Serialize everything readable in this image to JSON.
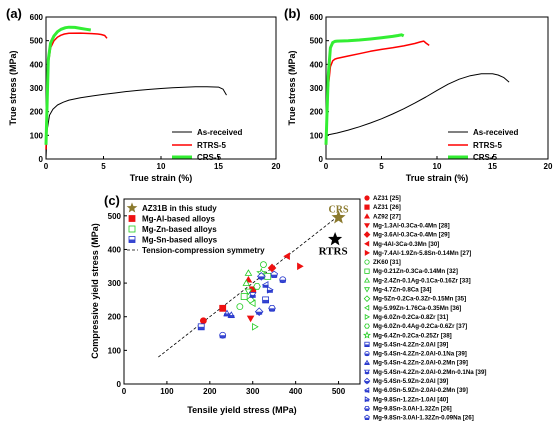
{
  "chart_data": [
    {
      "panel": "(a)",
      "type": "line",
      "xlabel": "True strain (%)",
      "ylabel": "True stress (MPa)",
      "xlim": [
        0,
        20
      ],
      "ylim": [
        0,
        600
      ],
      "xticks": [
        "0",
        "5",
        "10",
        "15",
        "20"
      ],
      "yticks": [
        "0",
        "100",
        "200",
        "300",
        "400",
        "500",
        "600"
      ],
      "series": [
        {
          "name": "As-received",
          "color": "#000000",
          "width": 1,
          "x": [
            0,
            0.1,
            0.3,
            0.6,
            1,
            1.5,
            2,
            3,
            4,
            5,
            6,
            7,
            8,
            9,
            10,
            11,
            12,
            13,
            14,
            15,
            15.4,
            15.7
          ],
          "y": [
            0,
            120,
            185,
            210,
            228,
            240,
            249,
            259,
            266,
            273,
            279,
            285,
            290,
            294,
            298,
            301,
            303,
            305,
            305,
            304,
            295,
            270
          ]
        },
        {
          "name": "RTRS-5",
          "color": "#ff0000",
          "width": 1.5,
          "x": [
            0,
            0.2,
            0.4,
            0.7,
            1,
            1.3,
            1.6,
            2,
            3,
            4,
            4.5,
            4.8,
            5.1,
            5.3
          ],
          "y": [
            40,
            400,
            470,
            500,
            515,
            523,
            528,
            531,
            532,
            530,
            528,
            526,
            522,
            510
          ]
        },
        {
          "name": "CRS-5",
          "color": "#33ee33",
          "width": 3,
          "x": [
            0,
            0.2,
            0.4,
            0.7,
            1,
            1.3,
            1.7,
            2,
            2.5,
            3,
            3.5,
            3.9
          ],
          "y": [
            60,
            420,
            490,
            520,
            538,
            548,
            555,
            557,
            556,
            552,
            548,
            545
          ]
        }
      ]
    },
    {
      "panel": "(b)",
      "type": "line",
      "xlabel": "True strain (%)",
      "ylabel": "True stress (MPa)",
      "xlim": [
        0,
        20
      ],
      "ylim": [
        0,
        600
      ],
      "xticks": [
        "0",
        "5",
        "10",
        "15",
        "20"
      ],
      "yticks": [
        "0",
        "100",
        "200",
        "300",
        "400",
        "500",
        "600"
      ],
      "series": [
        {
          "name": "As-received",
          "color": "#000000",
          "width": 1,
          "x": [
            0,
            1,
            2,
            3,
            4,
            5,
            6,
            7,
            8,
            9,
            10,
            11,
            12,
            13,
            14,
            15,
            15.5,
            16,
            16.5
          ],
          "y": [
            100,
            110,
            122,
            136,
            152,
            170,
            190,
            212,
            236,
            262,
            290,
            316,
            337,
            352,
            360,
            360,
            355,
            345,
            325
          ]
        },
        {
          "name": "RTRS-5",
          "color": "#ff0000",
          "width": 1.5,
          "x": [
            0,
            0.2,
            0.4,
            0.6,
            0.8,
            1,
            2,
            3,
            4,
            5,
            6,
            7,
            8,
            8.5,
            8.8,
            9,
            9.3
          ],
          "y": [
            60,
            300,
            390,
            415,
            422,
            425,
            435,
            445,
            455,
            463,
            470,
            478,
            488,
            495,
            498,
            490,
            480
          ]
        },
        {
          "name": "CRS-5",
          "color": "#33ee33",
          "width": 3,
          "x": [
            0,
            0.2,
            0.4,
            0.6,
            0.8,
            1,
            2,
            3,
            4,
            5,
            6,
            6.5,
            6.8,
            7
          ],
          "y": [
            60,
            350,
            470,
            492,
            497,
            498,
            500,
            503,
            507,
            512,
            518,
            522,
            525,
            520
          ]
        }
      ]
    },
    {
      "panel": "(c)",
      "type": "scatter",
      "xlabel": "Tensile yield stress (MPa)",
      "ylabel": "Compressive yield stress (MPa)",
      "xlim": [
        0,
        550
      ],
      "ylim": [
        0,
        550
      ],
      "xticks": [
        "0",
        "100",
        "200",
        "300",
        "400",
        "500"
      ],
      "yticks": [
        "0",
        "100",
        "200",
        "300",
        "400",
        "500"
      ],
      "symmetry_line": {
        "name": "Tension-compression symmetry",
        "x": [
          80,
          500
        ],
        "y": [
          80,
          500
        ]
      },
      "study_points": [
        {
          "label": "CRS",
          "x": 500,
          "y": 495,
          "marker": "star",
          "color": "#8b7a2e"
        },
        {
          "label": "RTRS",
          "x": 492,
          "y": 430,
          "marker": "star",
          "color": "#000000"
        }
      ],
      "legend": [
        {
          "name": "AZ31B in this study",
          "marker": "star",
          "color": "#8b7a2e"
        },
        {
          "name": "Mg-Al-based alloys",
          "marker": "square",
          "color": "#ee1111"
        },
        {
          "name": "Mg-Zn-based alloys",
          "marker": "square-open",
          "color": "#22cc22"
        },
        {
          "name": "Mg-Sn-based alloys",
          "marker": "square-half",
          "color": "#2233cc"
        },
        {
          "name": "Tension-compression symmetry",
          "marker": "dash",
          "color": "#000000"
        }
      ],
      "groups": [
        {
          "name": "Mg-Al-based alloys",
          "color": "#ee1111",
          "fill": "solid",
          "points": [
            [
              185,
              188
            ],
            [
              230,
              225
            ],
            [
              290,
              310
            ],
            [
              295,
              195
            ],
            [
              345,
              345
            ],
            [
              380,
              380
            ],
            [
              410,
              350
            ],
            [
              300,
              280
            ]
          ]
        },
        {
          "name": "Mg-Zn-based alloys",
          "color": "#22cc22",
          "fill": "open",
          "points": [
            [
              270,
              230
            ],
            [
              280,
              260
            ],
            [
              285,
              300
            ],
            [
              290,
              275
            ],
            [
              295,
              250
            ],
            [
              300,
              240
            ],
            [
              305,
              170
            ],
            [
              310,
              290
            ],
            [
              320,
              330
            ],
            [
              325,
              355
            ],
            [
              335,
              320
            ],
            [
              290,
              330
            ]
          ]
        },
        {
          "name": "Mg-Sn-based alloys",
          "color": "#2233cc",
          "fill": "half",
          "points": [
            [
              180,
              170
            ],
            [
              230,
              145
            ],
            [
              250,
              205
            ],
            [
              300,
              265
            ],
            [
              320,
              320
            ],
            [
              330,
              295
            ],
            [
              340,
              280
            ],
            [
              345,
              225
            ],
            [
              350,
              325
            ],
            [
              330,
              250
            ],
            [
              370,
              310
            ],
            [
              240,
              210
            ],
            [
              315,
              215
            ]
          ]
        }
      ],
      "references": [
        {
          "text": "AZ31 [25]",
          "marker": "circle-solid",
          "color": "#ee1111"
        },
        {
          "text": "AZ31 [26]",
          "marker": "square-solid",
          "color": "#ee1111"
        },
        {
          "text": "AZ92 [27]",
          "marker": "triangle-solid",
          "color": "#ee1111"
        },
        {
          "text": "Mg-1.3Al-0.3Ca-0.4Mn [28]",
          "marker": "tri-down-solid",
          "color": "#ee1111"
        },
        {
          "text": "Mg-3.6Al-0.3Ca-0.4Mn [29]",
          "marker": "diamond-solid",
          "color": "#ee1111"
        },
        {
          "text": "Mg-4Al-3Ca-0.3Mn [30]",
          "marker": "tri-left-solid",
          "color": "#ee1111"
        },
        {
          "text": "Mg-7.4Al-1.9Zn-5.8Sn-0.14Mn [27]",
          "marker": "tri-right-solid",
          "color": "#ee1111"
        },
        {
          "text": "ZK60 [31]",
          "marker": "circle-open",
          "color": "#22cc22"
        },
        {
          "text": "Mg-0.21Zn-0.3Ca-0.14Mn [32]",
          "marker": "square-open",
          "color": "#22cc22"
        },
        {
          "text": "Mg-2.4Zn-0.1Ag-0.1Ca-0.16Zr [33]",
          "marker": "triangle-open",
          "color": "#22cc22"
        },
        {
          "text": "Mg-4.7Zn-0.8Ca [34]",
          "marker": "tri-down-open",
          "color": "#22cc22"
        },
        {
          "text": "Mg-5Zn-0.2Ca-0.3Zr-0.15Mn [35]",
          "marker": "diamond-open",
          "color": "#22cc22"
        },
        {
          "text": "Mg-5.99Zn-1.76Ca-0.35Mn [36]",
          "marker": "tri-left-open",
          "color": "#22cc22"
        },
        {
          "text": "Mg-6.0Zn-0.2Ca-0.8Zr [31]",
          "marker": "tri-right-open",
          "color": "#22cc22"
        },
        {
          "text": "Mg-6.0Zn-0.4Ag-0.2Ca-0.6Zr [37]",
          "marker": "hexagon-open",
          "color": "#22cc22"
        },
        {
          "text": "Mg-6.4Zn-0.2Ca-0.25Zr [38]",
          "marker": "star-open",
          "color": "#22cc22"
        },
        {
          "text": "Mg-5.4Sn-4.2Zn-2.0Al [39]",
          "marker": "square-half",
          "color": "#2233cc"
        },
        {
          "text": "Mg-5.4Sn-4.2Zn-2.0Al-0.1Na [39]",
          "marker": "circle-half",
          "color": "#2233cc"
        },
        {
          "text": "Mg-5.4Sn-4.2Zn-2.0Al-0.2Mn [39]",
          "marker": "triangle-half",
          "color": "#2233cc"
        },
        {
          "text": "Mg-5.4Sn-4.2Zn-2.0Al-0.2Mn-0.1Na [39]",
          "marker": "tri-down-half",
          "color": "#2233cc"
        },
        {
          "text": "Mg-5.4Sn-5.9Zn-2.0Al [39]",
          "marker": "diamond-half",
          "color": "#2233cc"
        },
        {
          "text": "Mg-6.0Sn-5.9Zn-2.0Al-0.2Mn [39]",
          "marker": "tri-left-half",
          "color": "#2233cc"
        },
        {
          "text": "Mg-9.8Sn-1.2Zn-1.0Al [40]",
          "marker": "tri-right-half",
          "color": "#2233cc"
        },
        {
          "text": "Mg-9.8Sn-3.0Al-1.32Zn [26]",
          "marker": "hexagon-half",
          "color": "#2233cc"
        },
        {
          "text": "Mg-9.8Sn-3.0Al-1.32Zn-0.09Na [26]",
          "marker": "pentagon-half",
          "color": "#2233cc"
        }
      ]
    }
  ]
}
